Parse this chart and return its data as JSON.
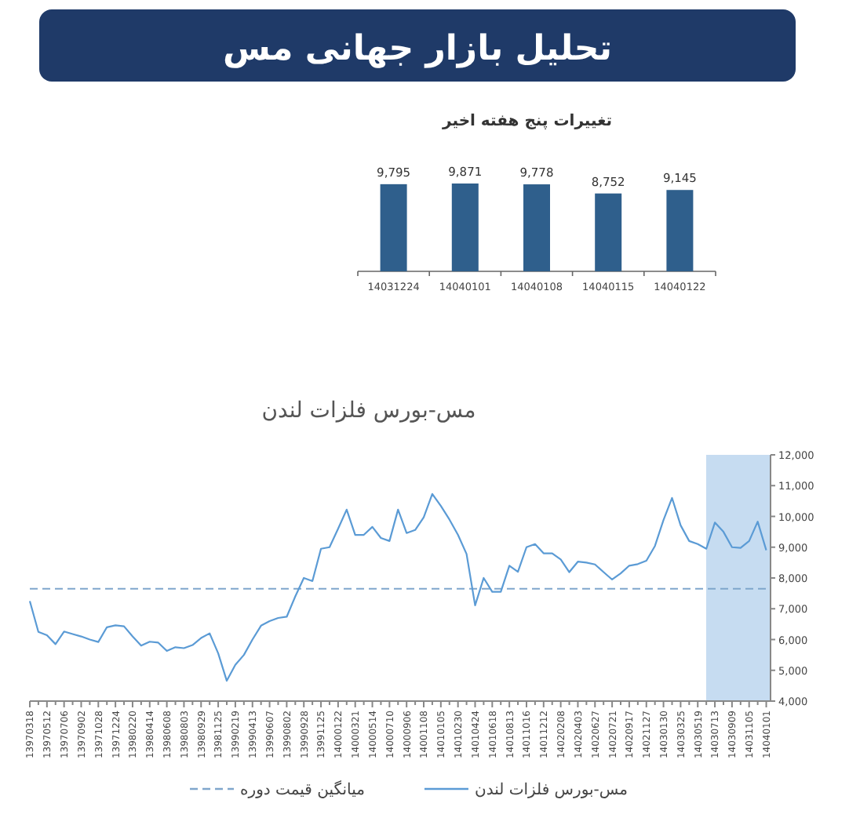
{
  "chart_data": [
    {
      "type": "bar",
      "title": "تحلیل بازار جهانی مس",
      "subtitle": "تغییرات پنج هفته اخیر",
      "categories": [
        "14031224",
        "14040101",
        "14040108",
        "14040115",
        "14040122"
      ],
      "values": [
        9795,
        9871,
        9778,
        8752,
        9145
      ],
      "value_labels": [
        "9,795",
        "9,871",
        "9,778",
        "8,752",
        "9,145"
      ],
      "color": "#2f5f8c"
    },
    {
      "type": "line",
      "title": "مس-بورس فلزات لندن",
      "categories": [
        "13970318",
        null,
        "13970512",
        null,
        "13970706",
        null,
        "13970902",
        null,
        "13971028",
        null,
        "13971224",
        null,
        "13980220",
        null,
        "13980414",
        null,
        "13980608",
        null,
        "13980803",
        null,
        "13980929",
        null,
        "13981125",
        null,
        "13990219",
        null,
        "13990413",
        null,
        "13990607",
        null,
        "13990802",
        null,
        "13990928",
        null,
        "13991125",
        null,
        "14000122",
        null,
        "14000321",
        null,
        "14000514",
        null,
        "14000710",
        null,
        "14000906",
        null,
        "14001108",
        null,
        "14010105",
        null,
        "14010230",
        null,
        "14010424",
        null,
        "14010618",
        null,
        "14010813",
        null,
        "14011016",
        null,
        "14011212",
        null,
        "14020208",
        null,
        "14020403",
        null,
        "14020627",
        null,
        "14020721",
        null,
        "14020917",
        null,
        "14021127",
        null,
        "14030130",
        null,
        "14030325",
        null,
        "14030519",
        null,
        "14030713",
        null,
        "14030909",
        null,
        "14031105",
        null,
        "14040101"
      ],
      "series": [
        {
          "name": "مس-بورس فلزات لندن",
          "color": "#5b9bd5",
          "values": [
            7250,
            6250,
            6140,
            5850,
            6260,
            6180,
            6100,
            6000,
            5920,
            6400,
            6460,
            6430,
            6100,
            5800,
            5930,
            5900,
            5630,
            5750,
            5720,
            5820,
            6050,
            6200,
            5550,
            4660,
            5180,
            5500,
            6000,
            6450,
            6600,
            6700,
            6740,
            7400,
            8000,
            7900,
            8950,
            9000,
            9600,
            10220,
            9400,
            9400,
            9660,
            9300,
            9200,
            10220,
            9460,
            9560,
            9970,
            10730,
            10340,
            9900,
            9400,
            8780,
            7110,
            8000,
            7550,
            7550,
            8400,
            8200,
            9000,
            9100,
            8800,
            8800,
            8600,
            8190,
            8530,
            8500,
            8440,
            8190,
            7950,
            8150,
            8400,
            8450,
            8560,
            9040,
            9880,
            10600,
            9710,
            9200,
            9100,
            8950,
            9800,
            9500,
            9000,
            8980,
            9200,
            9830,
            8900
          ]
        }
      ],
      "ylim": [
        4000,
        12000
      ],
      "yticks": [
        {
          "value": 4000,
          "label": "4,000"
        },
        {
          "value": 5000,
          "label": "5,000"
        },
        {
          "value": 6000,
          "label": "6,000"
        },
        {
          "value": 7000,
          "label": "7,000"
        },
        {
          "value": 8000,
          "label": "8,000"
        },
        {
          "value": 9000,
          "label": "9,000"
        },
        {
          "value": 10000,
          "label": "10,000"
        },
        {
          "value": 11000,
          "label": "11,000"
        },
        {
          "value": 12000,
          "label": "12,000"
        }
      ],
      "ref_lines": [
        {
          "axis": "y",
          "value": 7650,
          "label": "میانگین قیمت دوره",
          "color": "#7fa6cc",
          "line_style": "dashed"
        }
      ],
      "legend": "bottom",
      "line_style": "solid"
    }
  ]
}
